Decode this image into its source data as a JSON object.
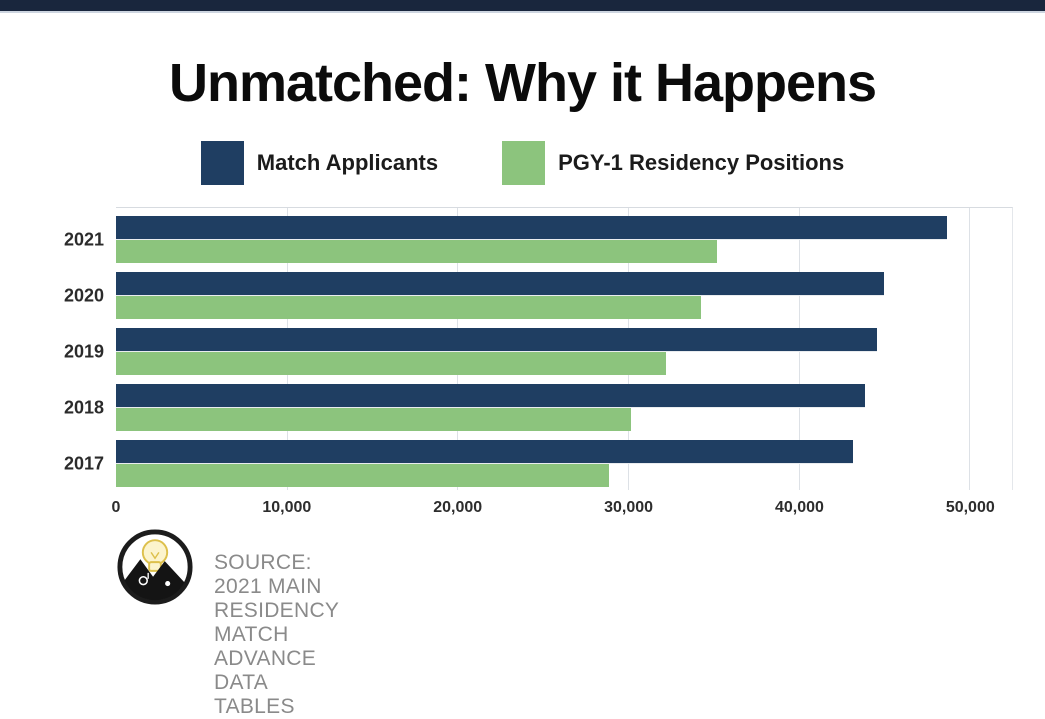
{
  "title": "Unmatched: Why it Happens",
  "legend": {
    "items": [
      {
        "label": "Match Applicants",
        "color": "#1f3e62"
      },
      {
        "label": "PGY-1 Residency Positions",
        "color": "#8cc47d"
      }
    ]
  },
  "chart_data": {
    "type": "bar",
    "orientation": "horizontal",
    "title": "Unmatched: Why it Happens",
    "categories": [
      "2021",
      "2020",
      "2019",
      "2018",
      "2017"
    ],
    "series": [
      {
        "name": "Match Applicants",
        "color": "#1f3e62",
        "values": [
          48700,
          45000,
          44600,
          43900,
          43200
        ]
      },
      {
        "name": "PGY-1 Residency Positions",
        "color": "#8cc47d",
        "values": [
          35200,
          34300,
          32200,
          30200,
          28900
        ]
      }
    ],
    "xlabel": "",
    "ylabel": "",
    "xlim": [
      0,
      52500
    ],
    "xticks": [
      0,
      10000,
      20000,
      30000,
      40000,
      50000
    ],
    "xtick_labels": [
      "0",
      "10,000",
      "20,000",
      "30,000",
      "40,000",
      "50,000"
    ],
    "grid": true,
    "legend_position": "top"
  },
  "footer": {
    "source_text": "SOURCE: 2021 MAIN RESIDENCY MATCH ADVANCE DATA TABLES",
    "logo": "lightbulb-mountains-logo"
  },
  "colors": {
    "top_bar": "#19263d",
    "gridline": "#dde1e6",
    "source_text": "#8a8a8a"
  }
}
